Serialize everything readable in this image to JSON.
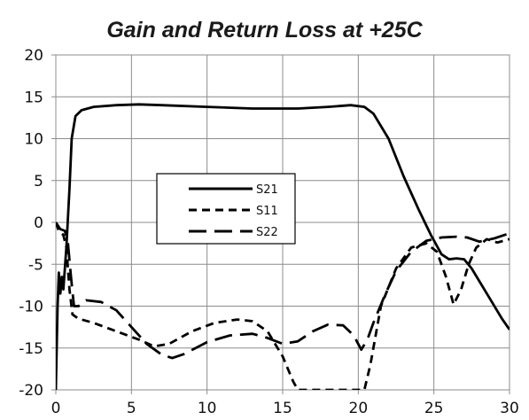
{
  "chart_data": {
    "type": "line",
    "title": "Gain and Return Loss at +25C",
    "xlabel": "",
    "ylabel": "",
    "xlim": [
      0,
      30
    ],
    "ylim": [
      -20,
      20
    ],
    "xticks": [
      0,
      5,
      10,
      15,
      20,
      25,
      30
    ],
    "yticks": [
      20,
      15,
      10,
      5,
      0,
      -5,
      -10,
      -15,
      -20
    ],
    "grid": true,
    "legend_position": "center-left",
    "series": [
      {
        "name": "S21",
        "style": "solid",
        "points": [
          [
            0.0,
            -20.0
          ],
          [
            0.12,
            -10.0
          ],
          [
            0.2,
            -6.0
          ],
          [
            0.3,
            -8.5
          ],
          [
            0.4,
            -6.5
          ],
          [
            0.5,
            -8.0
          ],
          [
            0.7,
            -3.0
          ],
          [
            0.9,
            4.0
          ],
          [
            1.05,
            10.0
          ],
          [
            1.3,
            12.7
          ],
          [
            1.7,
            13.4
          ],
          [
            2.5,
            13.8
          ],
          [
            4.0,
            14.0
          ],
          [
            5.5,
            14.1
          ],
          [
            7.0,
            14.0
          ],
          [
            10.0,
            13.8
          ],
          [
            13.0,
            13.6
          ],
          [
            16.0,
            13.6
          ],
          [
            18.0,
            13.8
          ],
          [
            19.5,
            14.0
          ],
          [
            20.4,
            13.8
          ],
          [
            21.0,
            13.0
          ],
          [
            22.0,
            10.0
          ],
          [
            23.0,
            5.5
          ],
          [
            24.0,
            1.5
          ],
          [
            24.8,
            -1.5
          ],
          [
            25.5,
            -3.8
          ],
          [
            26.0,
            -4.4
          ],
          [
            26.5,
            -4.3
          ],
          [
            27.0,
            -4.4
          ],
          [
            27.5,
            -5.5
          ],
          [
            28.5,
            -8.5
          ],
          [
            29.5,
            -11.5
          ],
          [
            30.0,
            -12.8
          ]
        ]
      },
      {
        "name": "S11",
        "style": "short-dash",
        "points": [
          [
            0.0,
            0.0
          ],
          [
            0.2,
            -1.0
          ],
          [
            0.5,
            -1.5
          ],
          [
            0.7,
            -3.0
          ],
          [
            0.9,
            -8.0
          ],
          [
            1.1,
            -11.0
          ],
          [
            1.5,
            -11.5
          ],
          [
            2.5,
            -12.0
          ],
          [
            4.0,
            -13.0
          ],
          [
            5.5,
            -14.0
          ],
          [
            6.5,
            -14.8
          ],
          [
            7.5,
            -14.5
          ],
          [
            9.0,
            -13.0
          ],
          [
            10.5,
            -12.0
          ],
          [
            12.0,
            -11.6
          ],
          [
            13.0,
            -11.8
          ],
          [
            14.0,
            -13.0
          ],
          [
            15.0,
            -16.0
          ],
          [
            15.7,
            -19.0
          ],
          [
            16.0,
            -20.0
          ],
          [
            20.4,
            -20.0
          ],
          [
            20.8,
            -17.0
          ],
          [
            21.5,
            -10.0
          ],
          [
            22.5,
            -5.5
          ],
          [
            23.5,
            -3.0
          ],
          [
            24.5,
            -2.5
          ],
          [
            25.2,
            -3.5
          ],
          [
            25.8,
            -6.5
          ],
          [
            26.3,
            -9.8
          ],
          [
            26.8,
            -8.0
          ],
          [
            27.3,
            -5.0
          ],
          [
            27.8,
            -3.0
          ],
          [
            28.5,
            -2.0
          ],
          [
            29.2,
            -2.4
          ],
          [
            30.0,
            -2.0
          ]
        ]
      },
      {
        "name": "S22",
        "style": "long-dash",
        "points": [
          [
            0.0,
            0.0
          ],
          [
            0.3,
            -0.8
          ],
          [
            0.6,
            -1.0
          ],
          [
            0.8,
            -2.5
          ],
          [
            1.0,
            -6.5
          ],
          [
            1.2,
            -10.0
          ],
          [
            1.5,
            -10.0
          ],
          [
            2.0,
            -9.3
          ],
          [
            3.0,
            -9.5
          ],
          [
            4.0,
            -10.5
          ],
          [
            5.0,
            -12.5
          ],
          [
            6.0,
            -14.5
          ],
          [
            7.0,
            -15.8
          ],
          [
            7.7,
            -16.2
          ],
          [
            8.5,
            -15.7
          ],
          [
            10.0,
            -14.3
          ],
          [
            11.5,
            -13.5
          ],
          [
            13.0,
            -13.3
          ],
          [
            14.0,
            -13.8
          ],
          [
            15.0,
            -14.5
          ],
          [
            16.0,
            -14.2
          ],
          [
            17.0,
            -13.0
          ],
          [
            18.0,
            -12.2
          ],
          [
            19.0,
            -12.3
          ],
          [
            19.7,
            -13.5
          ],
          [
            20.2,
            -15.2
          ],
          [
            20.6,
            -14.0
          ],
          [
            21.0,
            -12.0
          ],
          [
            21.8,
            -8.5
          ],
          [
            22.5,
            -5.8
          ],
          [
            23.5,
            -3.5
          ],
          [
            24.5,
            -2.2
          ],
          [
            25.5,
            -1.8
          ],
          [
            26.5,
            -1.7
          ],
          [
            27.2,
            -1.8
          ],
          [
            28.0,
            -2.3
          ],
          [
            29.0,
            -1.9
          ],
          [
            30.0,
            -1.3
          ]
        ]
      }
    ]
  }
}
